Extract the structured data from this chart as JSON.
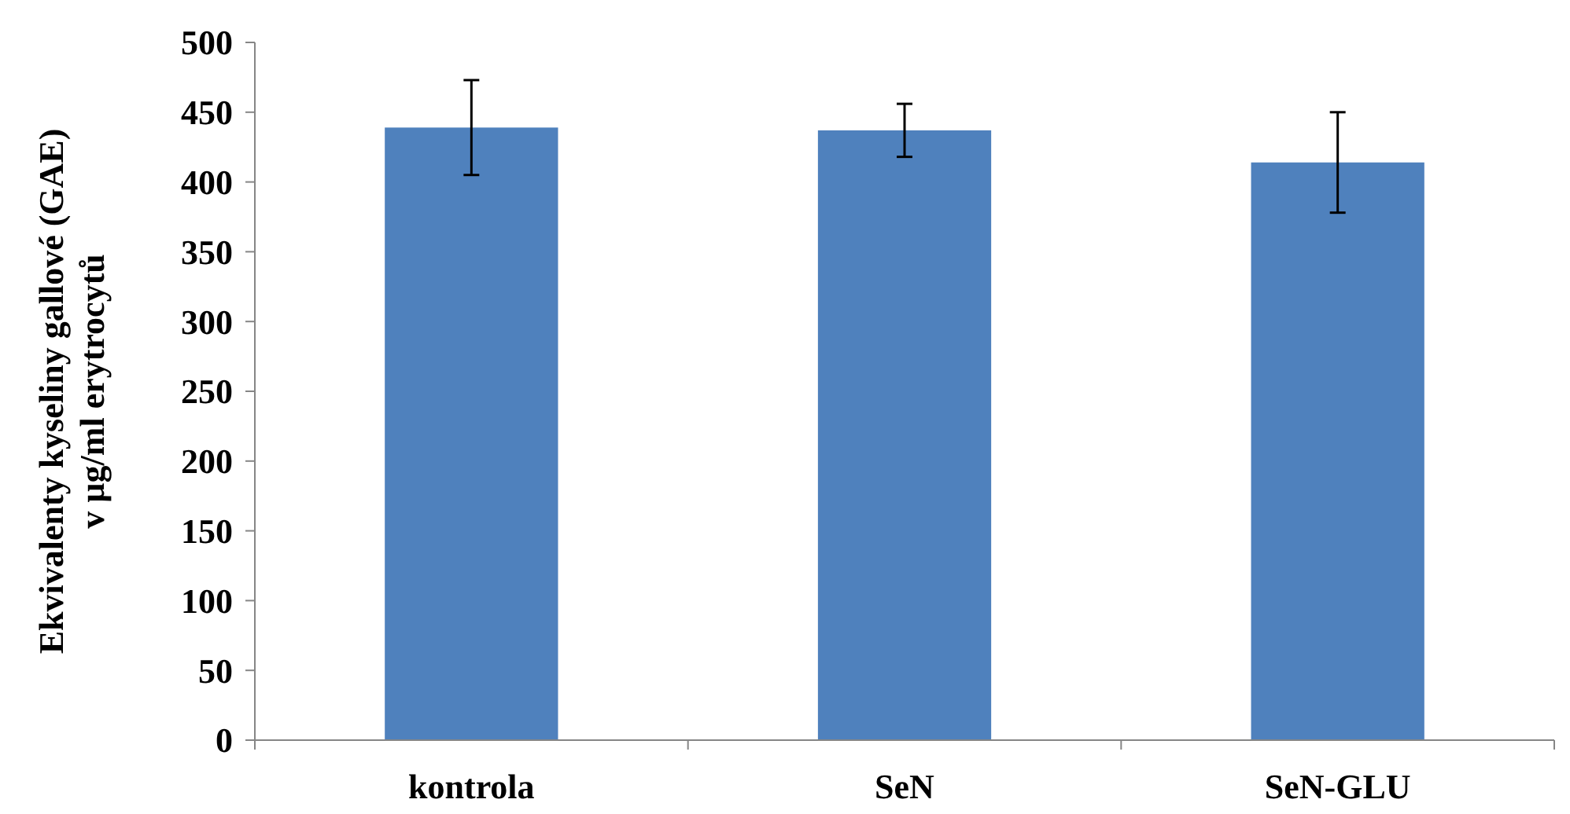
{
  "chart_data": {
    "type": "bar",
    "ylabel": "Ekvivalenty kyseliny gallové (GAE)\nv µg/ml erytrocytů",
    "categories": [
      "kontrola",
      "SeN",
      "SeN-GLU"
    ],
    "values": [
      439,
      437,
      414
    ],
    "errors": [
      34,
      19,
      36
    ],
    "color": "#4f81bd",
    "ylim": [
      0,
      500
    ],
    "yticks": [
      0,
      50,
      100,
      150,
      200,
      250,
      300,
      350,
      400,
      450,
      500
    ],
    "grid": false
  }
}
